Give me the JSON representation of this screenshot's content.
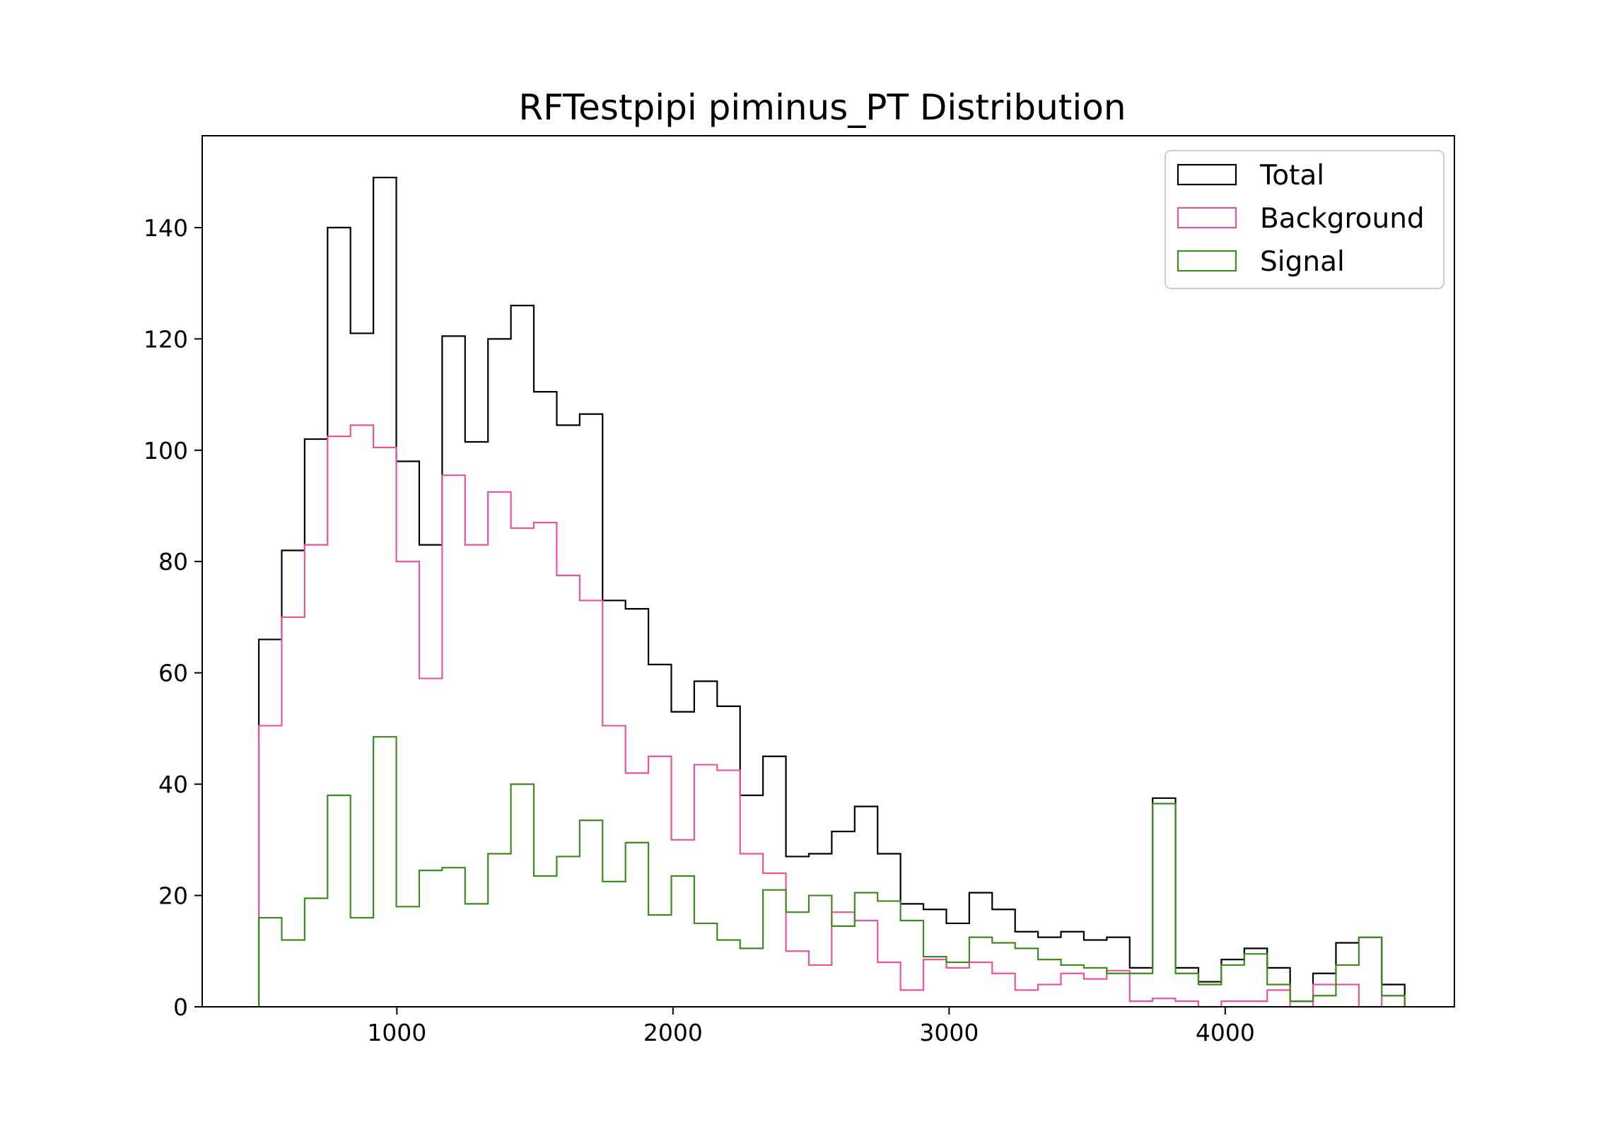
{
  "chart_data": {
    "type": "histogram",
    "title": "RFTestpipi piminus_PT Distribution",
    "xlabel": "",
    "ylabel": "",
    "xlim": [
      295,
      4830
    ],
    "ylim": [
      0,
      156.5
    ],
    "xticks": [
      1000,
      2000,
      3000,
      4000
    ],
    "yticks": [
      0,
      20,
      40,
      60,
      80,
      100,
      120,
      140
    ],
    "grid": false,
    "legend_position": "upper right",
    "bin_edges": [
      500,
      583,
      666,
      749,
      832,
      915,
      998,
      1081,
      1164,
      1247,
      1330,
      1413,
      1496,
      1579,
      1662,
      1745,
      1828,
      1911,
      1994,
      2077,
      2160,
      2243,
      2326,
      2409,
      2492,
      2575,
      2658,
      2741,
      2824,
      2907,
      2990,
      3073,
      3156,
      3239,
      3322,
      3405,
      3488,
      3571,
      3654,
      3737,
      3820,
      3903,
      3986,
      4069,
      4152,
      4235,
      4318,
      4401,
      4484,
      4567,
      4650
    ],
    "series": [
      {
        "name": "Total",
        "color": "#000000",
        "values": [
          66,
          82,
          102,
          140,
          121,
          149,
          98,
          83,
          120.5,
          101.5,
          120,
          126,
          110.5,
          104.5,
          106.5,
          73,
          71.5,
          61.5,
          53,
          58.5,
          54,
          38,
          45,
          27,
          27.5,
          31.5,
          36,
          27.5,
          18.5,
          17.5,
          15,
          20.5,
          17.5,
          13.5,
          12.5,
          13.5,
          12,
          12.5,
          7,
          37.5,
          7,
          4.5,
          8.5,
          10.5,
          7,
          1,
          6,
          11.5,
          12.5,
          4
        ]
      },
      {
        "name": "Background",
        "color": "#e8559d",
        "values": [
          50.5,
          70,
          83,
          102.5,
          104.5,
          100.5,
          80,
          59,
          95.5,
          83,
          92.5,
          86,
          87,
          77.5,
          73,
          50.5,
          42,
          45,
          30,
          43.5,
          42.5,
          27.5,
          24,
          10,
          7.5,
          17,
          15.5,
          8,
          3,
          8.5,
          7,
          8,
          6,
          3,
          4,
          6,
          5,
          6.5,
          1,
          1.5,
          1,
          0,
          1,
          1,
          3,
          0,
          4,
          4,
          0,
          2
        ]
      },
      {
        "name": "Signal",
        "color": "#3e8b1f",
        "values": [
          16,
          12,
          19.5,
          38,
          16,
          48.5,
          18,
          24.5,
          25,
          18.5,
          27.5,
          40,
          23.5,
          27,
          33.5,
          22.5,
          29.5,
          16.5,
          23.5,
          15,
          12,
          10.5,
          21,
          17,
          20,
          14.5,
          20.5,
          19,
          15.5,
          9,
          8,
          12.5,
          11.5,
          10.5,
          8.5,
          7.5,
          7,
          6,
          6,
          36.5,
          6,
          4,
          7.5,
          9.5,
          4,
          1,
          2,
          7.5,
          12.5,
          2
        ]
      }
    ]
  }
}
